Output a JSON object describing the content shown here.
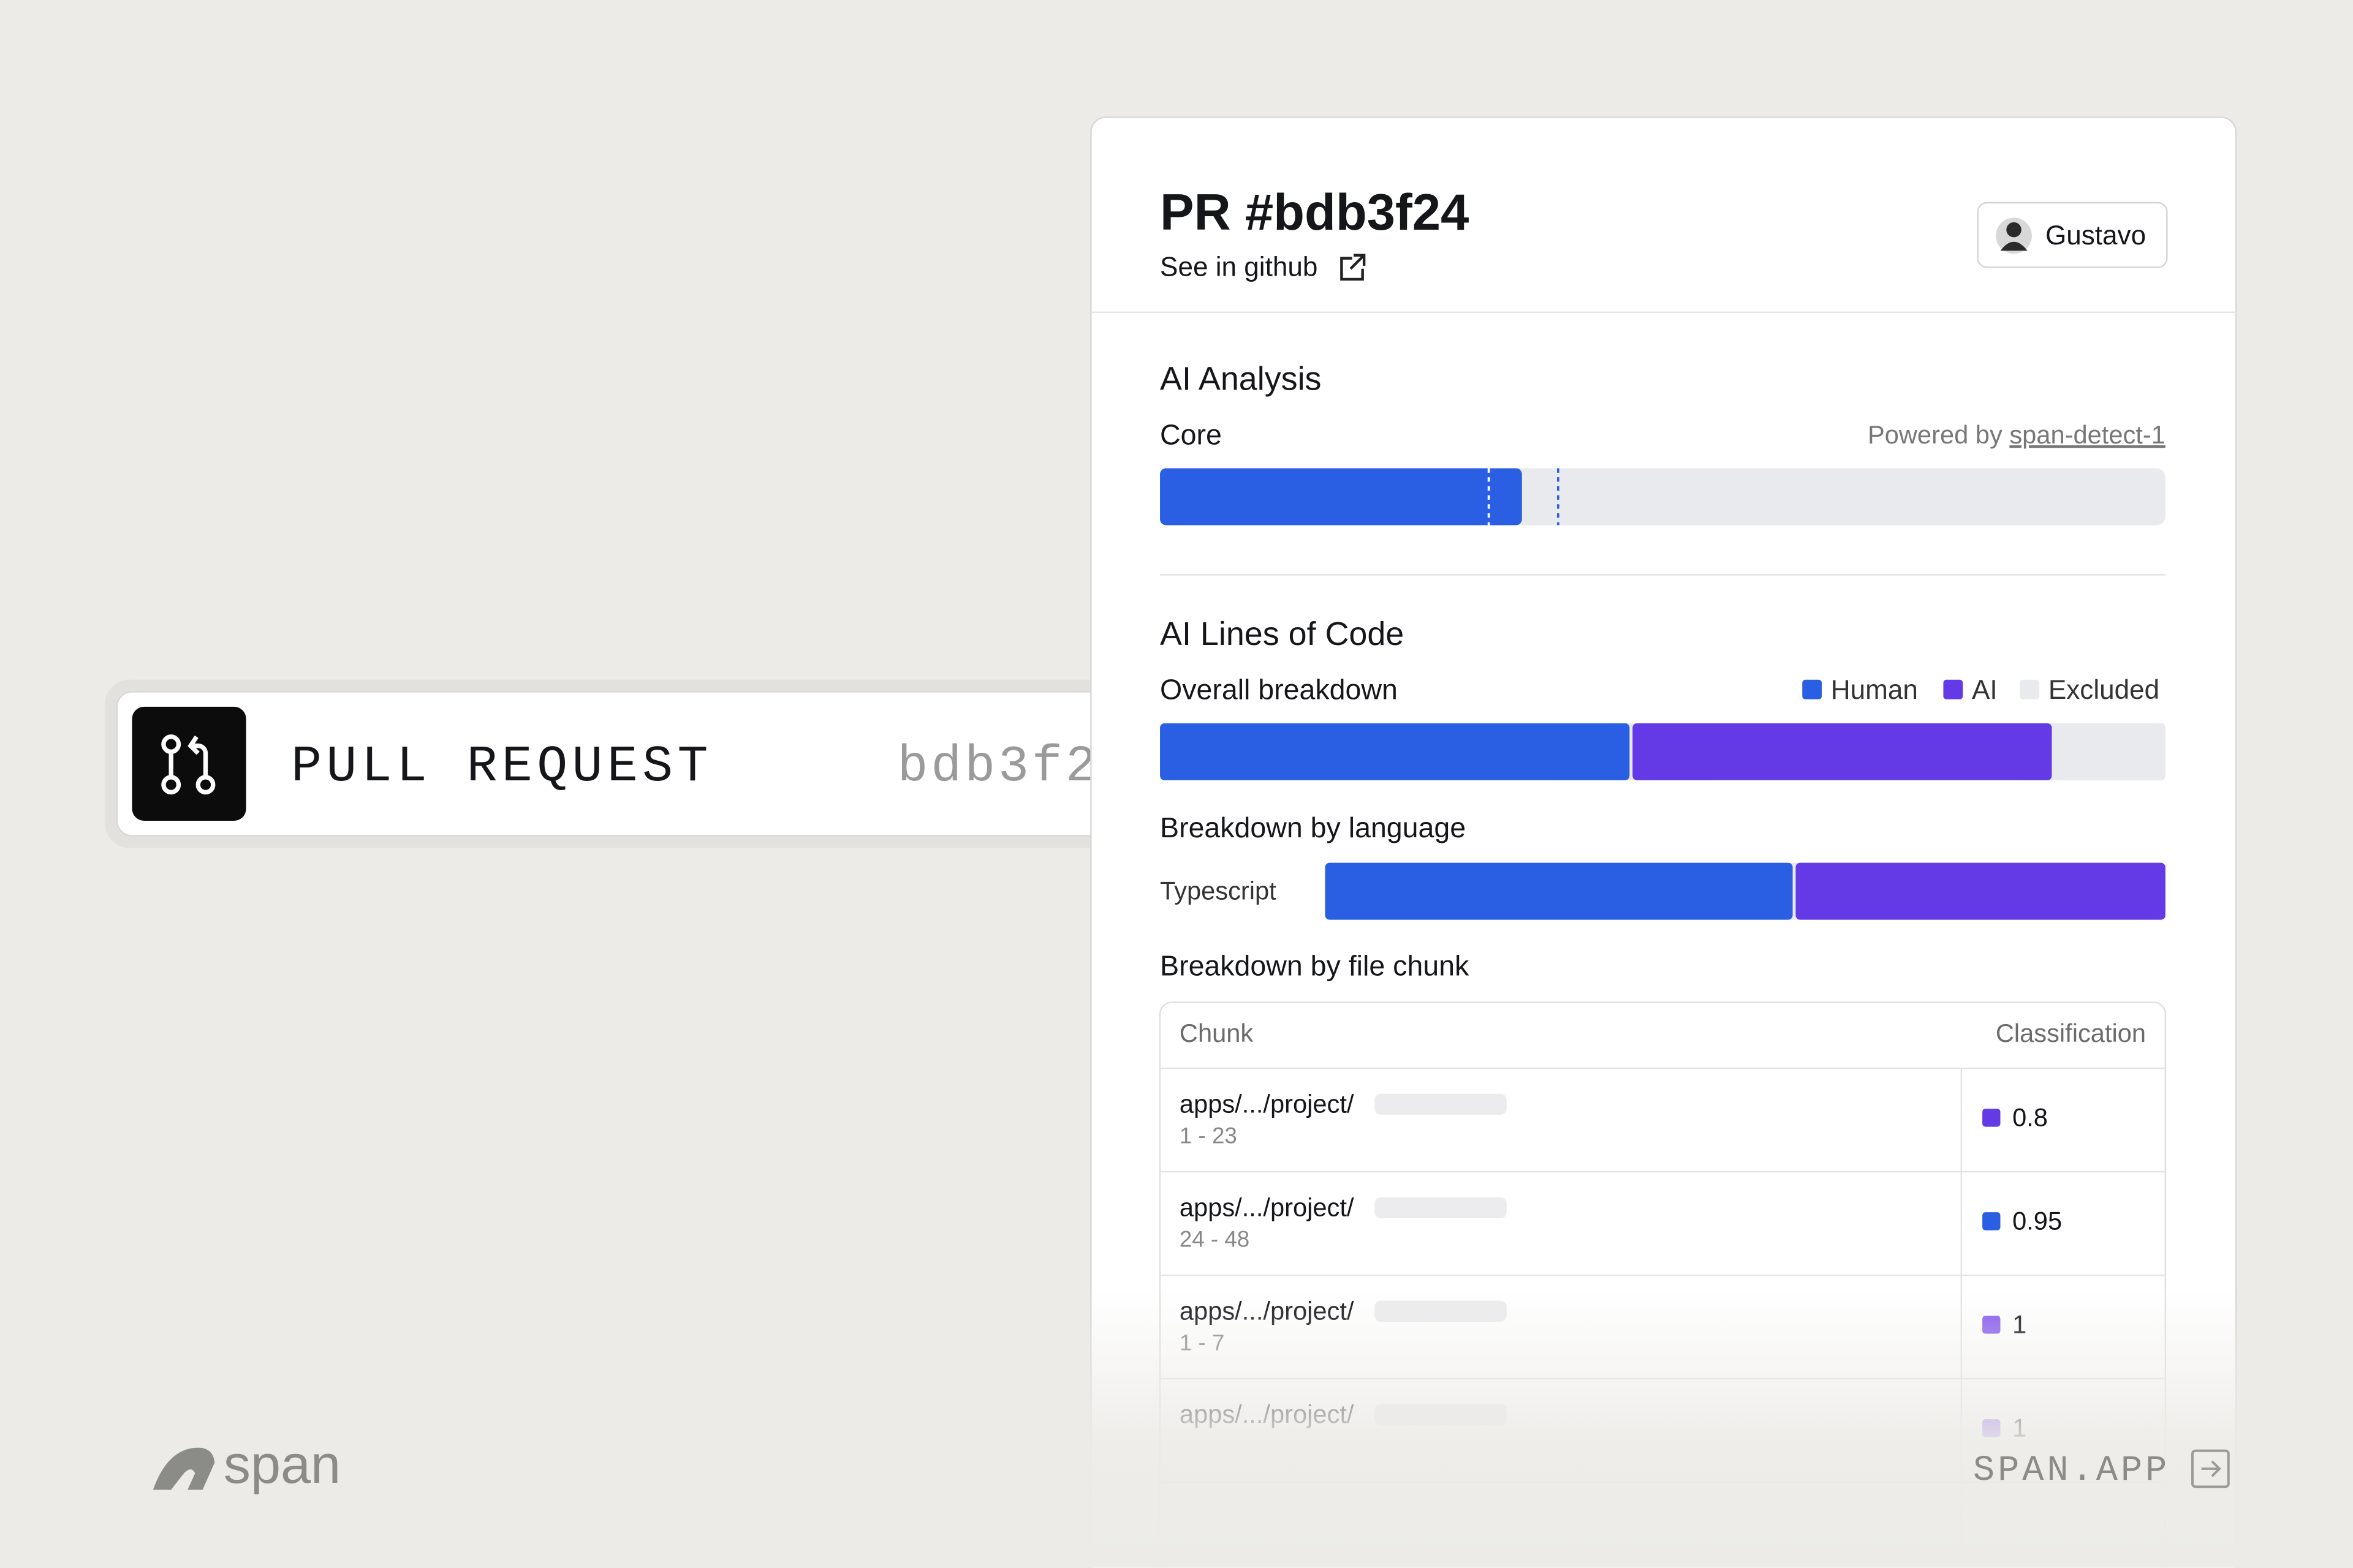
{
  "banner": {
    "label": "PULL REQUEST",
    "hash": "bdb3f2"
  },
  "header": {
    "title": "PR #bdb3f24",
    "link": "See in github",
    "user": "Gustavo"
  },
  "ai_analysis": {
    "title": "AI Analysis",
    "core": {
      "label": "Core",
      "powered_prefix": "Powered by",
      "model": "span-detect-1",
      "value": 0.36,
      "markers": [
        0.327,
        0.396
      ],
      "color": "#2b5fe3"
    }
  },
  "loc": {
    "title": "AI Lines of Code",
    "overall_label": "Overall breakdown",
    "legend": [
      {
        "name": "Human",
        "color": "#2b5fe3"
      },
      {
        "name": "AI",
        "color": "#6439e6"
      },
      {
        "name": "Excluded",
        "color": "#e9eaee"
      }
    ],
    "overall": [
      0.47,
      0.42,
      0.11
    ],
    "language_title": "Breakdown by language",
    "languages": [
      {
        "name": "Typescript",
        "values": [
          0.56,
          0.44
        ]
      }
    ]
  },
  "chunks": {
    "title": "Breakdown by file chunk",
    "columns": [
      "Chunk",
      "Classification"
    ],
    "rows": [
      {
        "path": "apps/.../project/",
        "lines": "1 - 23",
        "score": 0.8,
        "color": "#6439e6"
      },
      {
        "path": "apps/.../project/",
        "lines": "24 - 48",
        "score": 0.95,
        "color": "#2b5fe3"
      },
      {
        "path": "apps/.../project/",
        "lines": "1 - 7",
        "score": 1,
        "color": "#8a5cf0"
      },
      {
        "path": "apps/.../project/",
        "score": 1,
        "color": "#8a5cf0"
      }
    ]
  },
  "footer": {
    "brand": "span",
    "link": "SPAN.APP"
  }
}
